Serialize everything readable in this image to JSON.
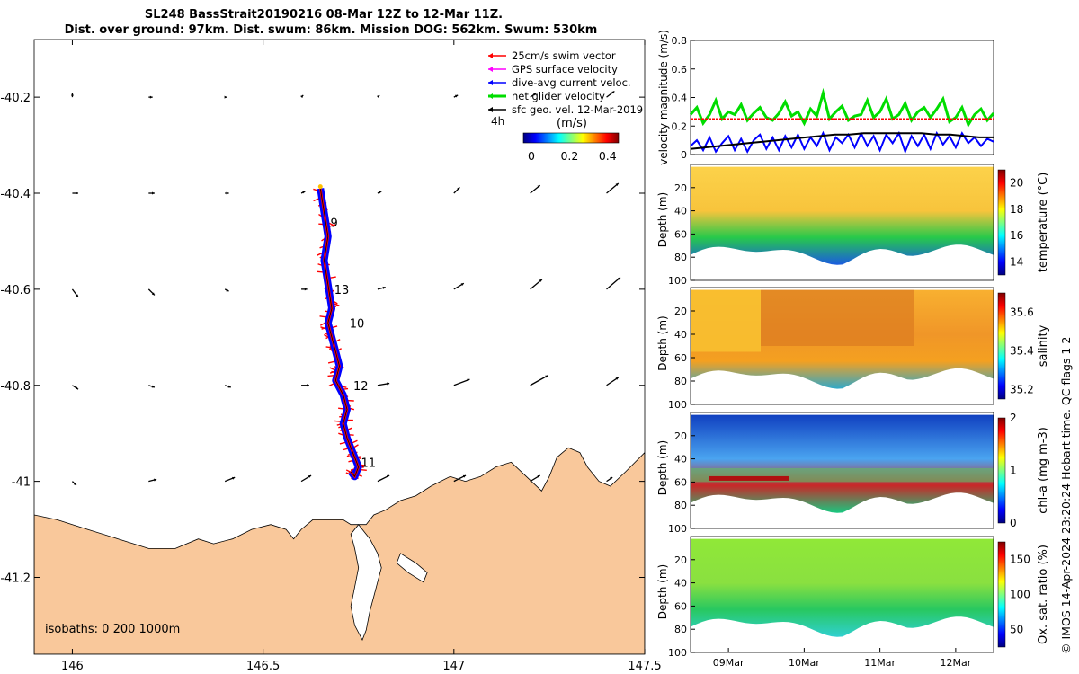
{
  "header": {
    "title_line1": "SL248 BassStrait20190216 08-Mar 12Z to 12-Mar 11Z.",
    "title_line2": "Dist. over ground: 97km. Dist. swum: 86km. Mission DOG: 562km. Swum: 530km"
  },
  "side_caption": "© IMOS 14-Apr-2024 23:20:24 Hobart time. QC flags 1  2",
  "colors": {
    "land": "#f9c89b",
    "track": "#0000ff",
    "swim": "#ff0000",
    "net": "#00dd00",
    "sfc": "#000000",
    "gps": "#ff00ff",
    "colormap": [
      "#00007f",
      "#0000ff",
      "#007fff",
      "#00ffff",
      "#7fff7f",
      "#ffff00",
      "#ff7f00",
      "#ff0000",
      "#7f0000"
    ]
  },
  "chart_data": [
    {
      "type": "scatter",
      "subtype": "map",
      "title": "",
      "xlim": [
        145.9,
        147.5
      ],
      "ylim": [
        -41.36,
        -40.08
      ],
      "xticks": [
        146,
        146.5,
        147,
        147.5
      ],
      "xtick_labels": [
        "146",
        "146.5",
        "147",
        "147.5"
      ],
      "yticks": [
        -40.2,
        -40.4,
        -40.6,
        -40.8,
        -41,
        -41.2
      ],
      "ytick_labels": [
        "-40.2",
        "-40.4",
        "-40.6",
        "-40.8",
        "-41",
        "-41.2"
      ],
      "isobath_label": "isobaths: 0   200  1000m",
      "legend": [
        {
          "label": "25cm/s swim vector",
          "color": "#ff0000"
        },
        {
          "label": "GPS surface velocity",
          "color": "#ff00ff"
        },
        {
          "label": "dive-avg current veloc.",
          "color": "#0000ff"
        },
        {
          "label": "net glider velocity",
          "color": "#00dd00"
        },
        {
          "label": "sfc geo. vel. 12-Mar-2019",
          "color": "#000000"
        }
      ],
      "time_marker_label": "4h",
      "colorbar": {
        "label": "(m/s)",
        "range": [
          0,
          0.5
        ],
        "ticks": [
          0,
          0.2,
          0.4
        ],
        "tick_labels": [
          "0",
          "0.2",
          "0.4"
        ]
      },
      "track": {
        "lon": [
          146.65,
          146.66,
          146.67,
          146.66,
          146.67,
          146.68,
          146.67,
          146.68,
          146.69,
          146.7,
          146.69,
          146.71,
          146.72,
          146.71,
          146.72,
          146.73,
          146.74,
          146.75,
          146.74,
          146.73
        ],
        "lat": [
          -40.39,
          -40.44,
          -40.49,
          -40.54,
          -40.59,
          -40.64,
          -40.67,
          -40.7,
          -40.73,
          -40.76,
          -40.79,
          -40.82,
          -40.85,
          -40.88,
          -40.91,
          -40.93,
          -40.95,
          -40.97,
          -40.99,
          -40.98
        ]
      },
      "track_labels": [
        {
          "text": "9",
          "lon": 146.66,
          "lat": -40.47
        },
        {
          "text": "13",
          "lon": 146.67,
          "lat": -40.61
        },
        {
          "text": "10",
          "lon": 146.71,
          "lat": -40.68
        },
        {
          "text": "12",
          "lon": 146.72,
          "lat": -40.81
        },
        {
          "text": "11",
          "lon": 146.74,
          "lat": -40.97
        }
      ],
      "sfc_vectors": {
        "lon": [
          146.0,
          146.2,
          146.4,
          146.6,
          146.8,
          147.0,
          147.2,
          147.4
        ],
        "lat": [
          -40.2,
          -40.4,
          -40.6,
          -40.8,
          -41.0
        ],
        "u": [
          [
            0.0,
            0.02,
            0.01,
            0.01,
            0.01,
            0.02,
            0.03,
            0.04
          ],
          [
            0.03,
            0.03,
            0.02,
            0.02,
            0.02,
            0.03,
            0.05,
            0.06
          ],
          [
            0.03,
            0.03,
            0.02,
            0.03,
            0.04,
            0.05,
            0.06,
            0.07
          ],
          [
            0.03,
            0.03,
            0.03,
            0.04,
            0.06,
            0.08,
            0.09,
            0.06
          ],
          [
            0.02,
            0.04,
            0.05,
            0.05,
            0.06,
            0.06,
            0.05,
            0.03
          ]
        ],
        "v": [
          [
            0.02,
            0.0,
            0.0,
            0.01,
            0.01,
            0.01,
            0.02,
            0.03
          ],
          [
            0.0,
            0.0,
            0.0,
            0.01,
            0.01,
            0.03,
            0.04,
            0.05
          ],
          [
            -0.04,
            -0.03,
            -0.01,
            0.0,
            0.01,
            0.03,
            0.05,
            0.06
          ],
          [
            -0.02,
            -0.01,
            -0.01,
            0.0,
            0.01,
            0.03,
            0.05,
            0.04
          ],
          [
            -0.02,
            0.01,
            0.02,
            0.03,
            0.03,
            0.03,
            0.03,
            0.02
          ]
        ]
      }
    },
    {
      "type": "line",
      "ylabel": "velocity magnitude (m/s)",
      "ylim": [
        0,
        0.8
      ],
      "yticks": [
        0,
        0.2,
        0.4,
        0.6,
        0.8
      ],
      "ytick_labels": [
        "0",
        "0.2",
        "0.4",
        "0.6",
        "0.8"
      ],
      "xlim": [
        0,
        4.0
      ],
      "series": [
        {
          "color": "#00dd00",
          "values": [
            0.28,
            0.33,
            0.22,
            0.28,
            0.38,
            0.25,
            0.3,
            0.28,
            0.35,
            0.24,
            0.29,
            0.33,
            0.26,
            0.24,
            0.29,
            0.37,
            0.27,
            0.3,
            0.22,
            0.32,
            0.27,
            0.43,
            0.25,
            0.3,
            0.34,
            0.24,
            0.27,
            0.28,
            0.38,
            0.26,
            0.3,
            0.39,
            0.25,
            0.28,
            0.36,
            0.24,
            0.3,
            0.33,
            0.26,
            0.32,
            0.39,
            0.23,
            0.26,
            0.33,
            0.21,
            0.28,
            0.32,
            0.24,
            0.29
          ]
        },
        {
          "color": "#ff0000",
          "values": [
            0.25,
            0.25,
            0.25,
            0.25,
            0.25,
            0.25,
            0.25,
            0.25,
            0.25,
            0.25,
            0.25,
            0.25,
            0.25,
            0.25,
            0.25,
            0.25,
            0.25,
            0.25,
            0.25,
            0.25,
            0.25,
            0.25,
            0.25,
            0.25,
            0.25,
            0.25,
            0.25,
            0.25,
            0.25,
            0.25,
            0.25,
            0.25,
            0.25,
            0.25,
            0.25,
            0.25,
            0.25,
            0.25,
            0.25,
            0.25,
            0.25,
            0.25,
            0.25,
            0.25,
            0.25,
            0.25,
            0.25,
            0.25,
            0.25
          ]
        },
        {
          "color": "#0000ff",
          "values": [
            0.06,
            0.1,
            0.03,
            0.12,
            0.02,
            0.08,
            0.13,
            0.03,
            0.11,
            0.02,
            0.1,
            0.14,
            0.04,
            0.12,
            0.03,
            0.13,
            0.05,
            0.14,
            0.04,
            0.12,
            0.06,
            0.15,
            0.03,
            0.12,
            0.08,
            0.14,
            0.05,
            0.15,
            0.06,
            0.13,
            0.03,
            0.14,
            0.08,
            0.15,
            0.02,
            0.13,
            0.06,
            0.14,
            0.04,
            0.15,
            0.07,
            0.13,
            0.05,
            0.15,
            0.08,
            0.12,
            0.06,
            0.11,
            0.09
          ]
        },
        {
          "color": "#000000",
          "values": [
            0.04,
            0.05,
            0.06,
            0.07,
            0.08,
            0.09,
            0.1,
            0.11,
            0.12,
            0.13,
            0.14,
            0.14,
            0.15,
            0.15,
            0.15,
            0.15,
            0.15,
            0.14,
            0.14,
            0.13,
            0.12,
            0.12
          ]
        }
      ]
    },
    {
      "type": "heatmap",
      "ylabel": "Depth (m)",
      "cbar_label": "temperature (°C)",
      "clim": [
        13,
        21
      ],
      "cbar_ticks": [
        14,
        16,
        18,
        20
      ],
      "cbar_tick_labels": [
        "14",
        "16",
        "18",
        "20"
      ]
    },
    {
      "type": "heatmap",
      "ylabel": "Depth (m)",
      "cbar_label": "salinity",
      "clim": [
        35.15,
        35.7
      ],
      "cbar_ticks": [
        35.2,
        35.4,
        35.6
      ],
      "cbar_tick_labels": [
        "35.2",
        "35.4",
        "35.6"
      ]
    },
    {
      "type": "heatmap",
      "ylabel": "Depth (m)",
      "cbar_label": "chl-a (mg m-3)",
      "clim": [
        0,
        2
      ],
      "cbar_ticks": [
        0,
        1,
        2
      ],
      "cbar_tick_labels": [
        "0",
        "1",
        "2"
      ]
    },
    {
      "type": "heatmap",
      "ylabel": "Depth (m)",
      "cbar_label": "Ox. sat. ratio (%)",
      "clim": [
        25,
        175
      ],
      "cbar_ticks": [
        50,
        100,
        150
      ],
      "cbar_tick_labels": [
        "50",
        "100",
        "150"
      ]
    }
  ],
  "depth_axis": {
    "ylim": [
      0,
      100
    ],
    "yticks": [
      20,
      40,
      60,
      80,
      100
    ],
    "ytick_labels": [
      "20",
      "40",
      "60",
      "80",
      "100"
    ]
  },
  "time_axis": {
    "xlim": [
      0,
      4.0
    ],
    "ticks": [
      0.5,
      1.5,
      2.5,
      3.5
    ],
    "tick_labels": [
      "09Mar",
      "10Mar",
      "11Mar",
      "12Mar"
    ]
  }
}
